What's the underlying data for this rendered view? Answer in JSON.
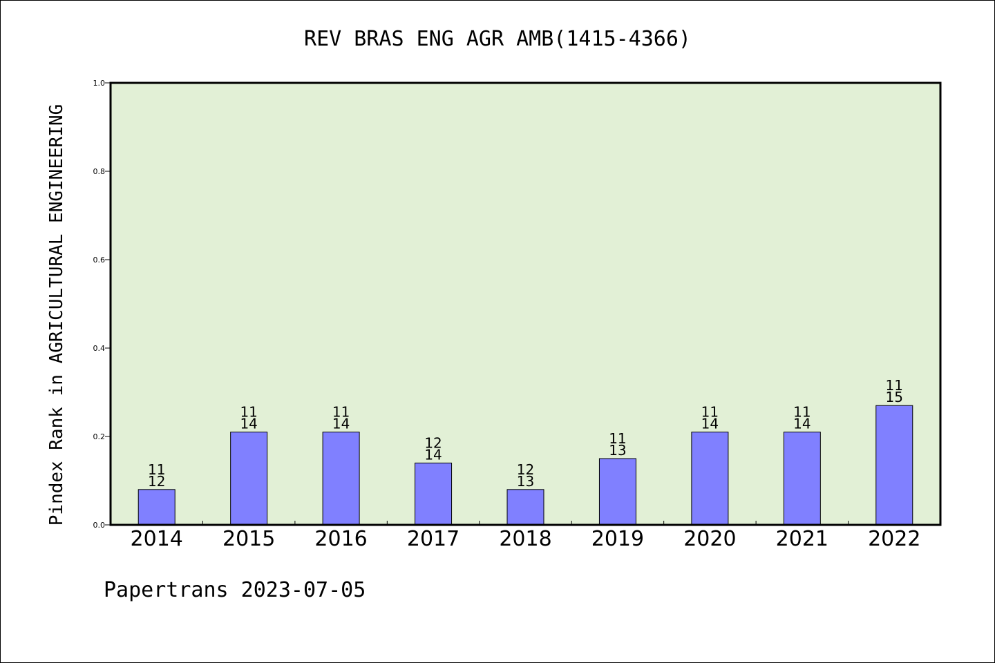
{
  "chart_data": {
    "type": "bar",
    "title": "REV BRAS ENG AGR AMB(1415-4366)",
    "ylabel": "Pindex Rank in AGRICULTURAL ENGINEERING",
    "xlabel": "",
    "categories": [
      "2014",
      "2015",
      "2016",
      "2017",
      "2018",
      "2019",
      "2020",
      "2021",
      "2022"
    ],
    "values": [
      0.08,
      0.21,
      0.21,
      0.14,
      0.08,
      0.15,
      0.21,
      0.21,
      0.27
    ],
    "label_top": [
      "11",
      "11",
      "11",
      "12",
      "12",
      "11",
      "11",
      "11",
      "11"
    ],
    "label_bottom": [
      "12",
      "14",
      "14",
      "14",
      "13",
      "13",
      "14",
      "14",
      "15"
    ],
    "ylim": [
      0,
      1.0
    ],
    "yticks": [
      "0.0",
      "0.2",
      "0.4",
      "0.6",
      "0.8",
      "1.0"
    ],
    "ytick_values": [
      0.0,
      0.2,
      0.4,
      0.6,
      0.8,
      1.0
    ],
    "grid": false,
    "legend": "none",
    "colors": {
      "bar": "#8080ff",
      "plot_background": "#e2f0d6",
      "axis": "#000000"
    }
  },
  "footer": {
    "credit": "Papertrans 2023-07-05"
  }
}
